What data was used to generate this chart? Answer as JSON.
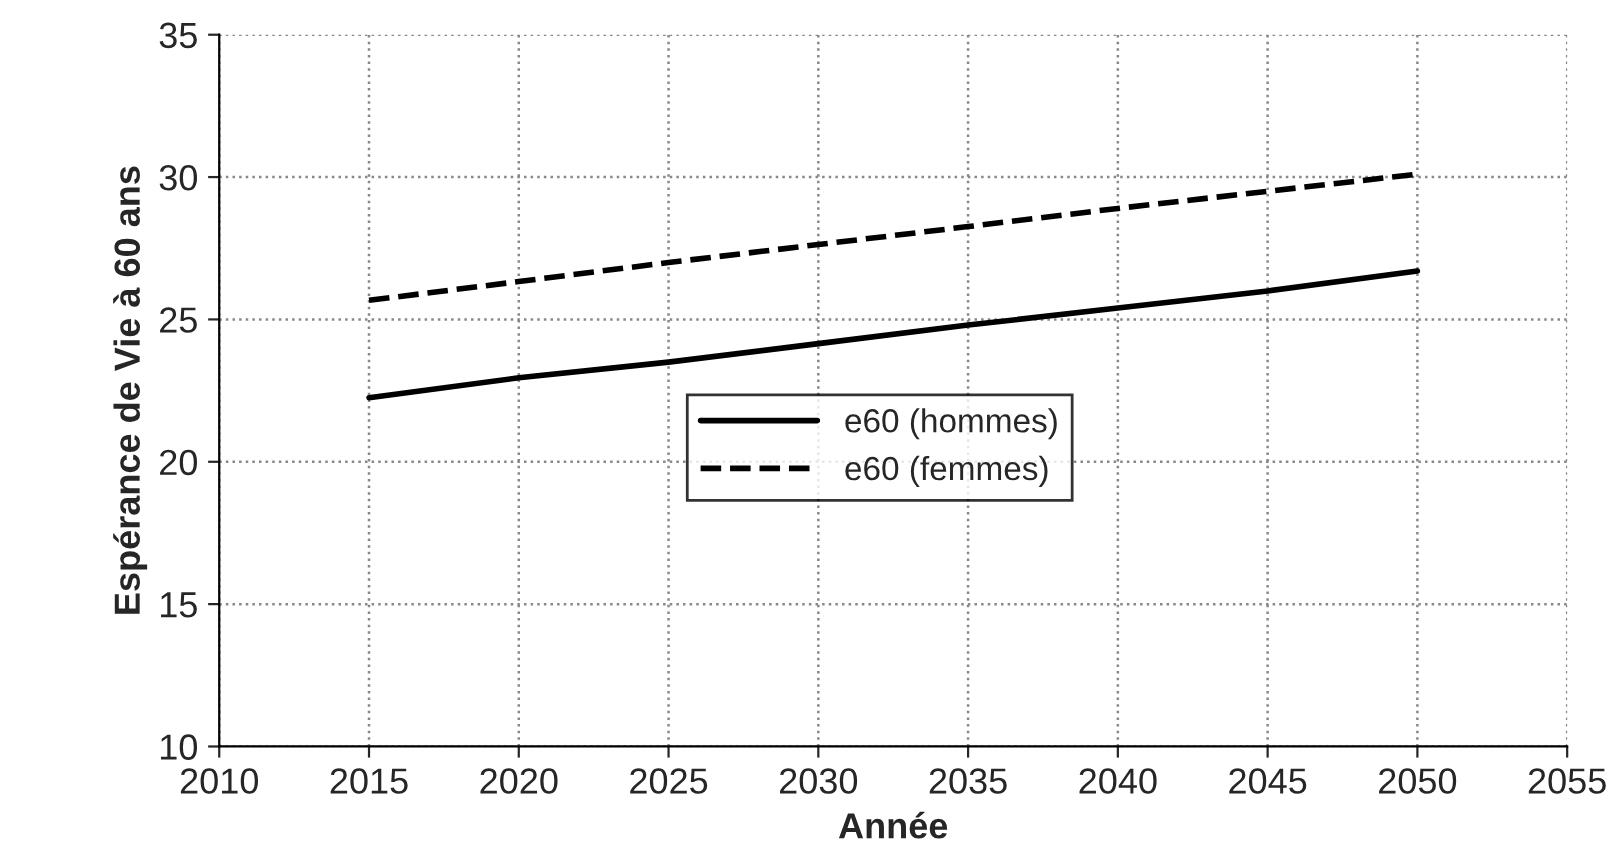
{
  "chart_data": {
    "type": "line",
    "xlabel": "Année",
    "ylabel": "Espérance de Vie à 60 ans",
    "x": [
      2015,
      2020,
      2025,
      2030,
      2035,
      2040,
      2045,
      2050
    ],
    "series": [
      {
        "name": "e60 (hommes)",
        "color": "#000000",
        "line_style": "solid",
        "values": [
          22.25,
          22.95,
          23.5,
          24.15,
          24.8,
          25.4,
          26.0,
          26.7
        ]
      },
      {
        "name": "e60 (femmes)",
        "color": "#000000",
        "line_style": "dashed",
        "values": [
          25.67,
          26.33,
          27.0,
          27.63,
          28.26,
          28.9,
          29.5,
          30.1
        ]
      }
    ],
    "xlim": [
      2010,
      2055
    ],
    "xticks": [
      2010,
      2015,
      2020,
      2025,
      2030,
      2035,
      2040,
      2045,
      2050,
      2055
    ],
    "ylim": [
      10,
      35
    ],
    "yticks": [
      10,
      15,
      20,
      25,
      30,
      35
    ],
    "grid": true,
    "legend": "center",
    "marker": "none"
  }
}
